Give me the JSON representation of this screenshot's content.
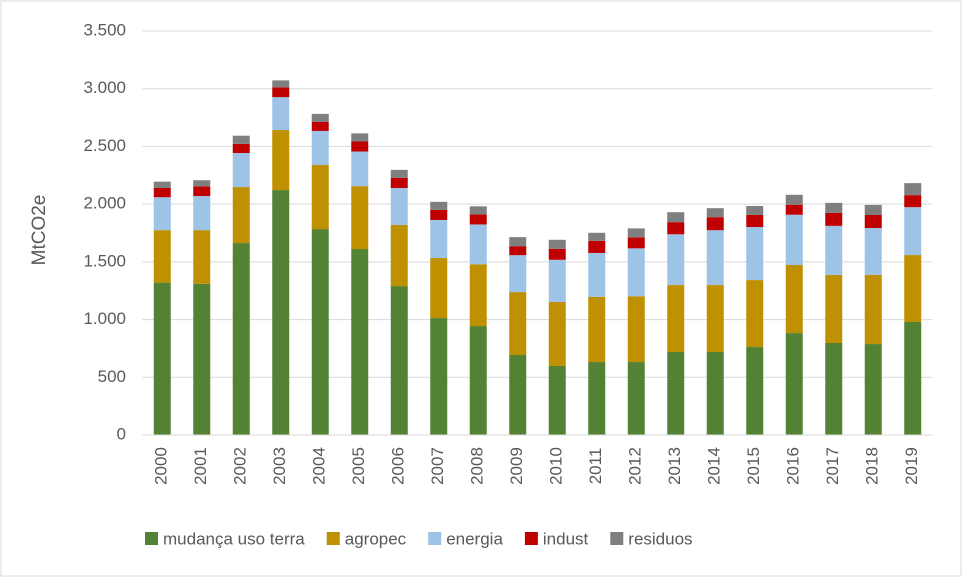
{
  "chart_data": {
    "type": "stacked_bar",
    "y_label": "MtCO2e",
    "categories": [
      "2000",
      "2001",
      "2002",
      "2003",
      "2004",
      "2005",
      "2006",
      "2007",
      "2008",
      "2009",
      "2010",
      "2011",
      "2012",
      "2013",
      "2014",
      "2015",
      "2016",
      "2017",
      "2018",
      "2019"
    ],
    "series": [
      {
        "name": "mudança uso terra",
        "color": "#548235",
        "values": [
          1320,
          1310,
          1663,
          2122,
          1784,
          1611,
          1290,
          1013,
          944,
          693,
          598,
          632,
          632,
          719,
          719,
          762,
          883,
          797,
          788,
          979
        ]
      },
      {
        "name": "agropec",
        "color": "#bf9000",
        "values": [
          455,
          465,
          485,
          520,
          555,
          545,
          530,
          520,
          535,
          545,
          555,
          565,
          570,
          580,
          580,
          580,
          590,
          590,
          600,
          580
        ]
      },
      {
        "name": "energia",
        "color": "#9dc3e6",
        "values": [
          285,
          295,
          295,
          285,
          295,
          300,
          320,
          330,
          345,
          320,
          365,
          380,
          415,
          440,
          475,
          460,
          435,
          425,
          405,
          415
        ]
      },
      {
        "name": "indust",
        "color": "#c00000",
        "values": [
          80,
          85,
          80,
          85,
          78,
          87,
          87,
          87,
          87,
          78,
          95,
          105,
          95,
          105,
          113,
          104,
          87,
          112,
          113,
          104
        ]
      },
      {
        "name": "residuos",
        "color": "#7f7f7f",
        "values": [
          55,
          52,
          70,
          60,
          70,
          70,
          70,
          70,
          70,
          78,
          78,
          70,
          78,
          86,
          78,
          78,
          86,
          87,
          87,
          104
        ]
      }
    ],
    "ylim": [
      0,
      3500
    ],
    "yticks": [
      0,
      500,
      {
        "value": 1000,
        "label": "1.000"
      },
      {
        "value": 1500,
        "label": "1.500"
      },
      {
        "value": 2000,
        "label": "2.000"
      },
      {
        "value": 2500,
        "label": "2.500"
      },
      {
        "value": 3000,
        "label": "3.000"
      },
      {
        "value": 3500,
        "label": "3.500"
      }
    ],
    "grid": true,
    "legend": "bottom"
  }
}
